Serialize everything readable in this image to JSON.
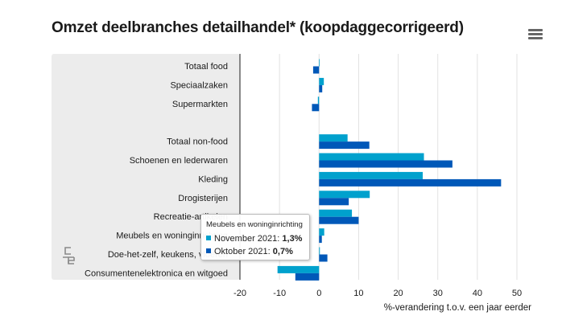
{
  "title": "Omzet deelbranches detailhandel* (koopdaggecorrigeerd)",
  "menu_icon": "hamburger-menu-icon",
  "logo_icon": "cbs-logo-icon",
  "chart_data": {
    "type": "bar",
    "orientation": "horizontal",
    "title": "Omzet deelbranches detailhandel* (koopdaggecorrigeerd)",
    "xlabel": "%-verandering t.o.v. een jaar eerder",
    "xlim": [
      -20,
      50
    ],
    "xticks": [
      "-20",
      "-10",
      "0",
      "10",
      "20",
      "30",
      "40",
      "50"
    ],
    "grid": "vertical",
    "legend": "none",
    "categories": [
      "Totaal food",
      "Speciaalzaken",
      "Supermarkten",
      "",
      "Totaal non-food",
      "Schoenen en lederwaren",
      "Kleding",
      "Drogisterijen",
      "Recreatie-artikelen",
      "Meubels en woninginrichting",
      "Doe-het-zelf, keukens, vloeren",
      "Consumentenelektronica en witgoed"
    ],
    "series": [
      {
        "name": "November 2021",
        "color": "#00a1cd",
        "values": [
          0.1,
          1.2,
          -0.3,
          null,
          7.2,
          26.5,
          26.2,
          12.8,
          8.3,
          1.3,
          0.2,
          -10.5
        ]
      },
      {
        "name": "Oktober 2021",
        "color": "#0058b8",
        "values": [
          -1.5,
          0.8,
          -1.8,
          null,
          12.7,
          33.7,
          46.0,
          7.5,
          10.0,
          0.7,
          2.1,
          -6.0
        ]
      }
    ]
  },
  "tooltip": {
    "heading": "Meubels en woninginrichting",
    "rows": [
      {
        "label": "November 2021:",
        "value": "1,3%",
        "color": "#00a1cd"
      },
      {
        "label": "Oktober 2021:",
        "value": "0,7%",
        "color": "#0058b8"
      }
    ]
  }
}
